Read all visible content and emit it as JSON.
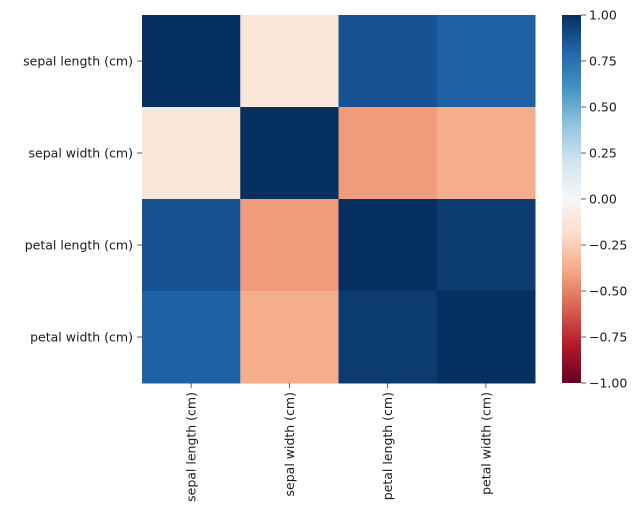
{
  "chart_data": {
    "type": "heatmap",
    "title": "",
    "xlabel": "",
    "ylabel": "",
    "row_labels": [
      "sepal length (cm)",
      "sepal width (cm)",
      "petal length (cm)",
      "petal width (cm)"
    ],
    "col_labels": [
      "sepal length (cm)",
      "sepal width (cm)",
      "petal length (cm)",
      "petal width (cm)"
    ],
    "values": [
      [
        1.0,
        -0.12,
        0.87,
        0.82
      ],
      [
        -0.12,
        1.0,
        -0.43,
        -0.37
      ],
      [
        0.87,
        -0.43,
        1.0,
        0.96
      ],
      [
        0.82,
        -0.37,
        0.96,
        1.0
      ]
    ],
    "colorbar": {
      "colormap": "RdBu",
      "vmin": -1.0,
      "vmax": 1.0,
      "ticks": [
        1.0,
        0.75,
        0.5,
        0.25,
        0.0,
        -0.25,
        -0.5,
        -0.75,
        -1.0
      ],
      "tick_labels": [
        "1.00",
        "0.75",
        "0.50",
        "0.25",
        "0.00",
        "−0.25",
        "−0.50",
        "−0.75",
        "−1.00"
      ]
    }
  }
}
